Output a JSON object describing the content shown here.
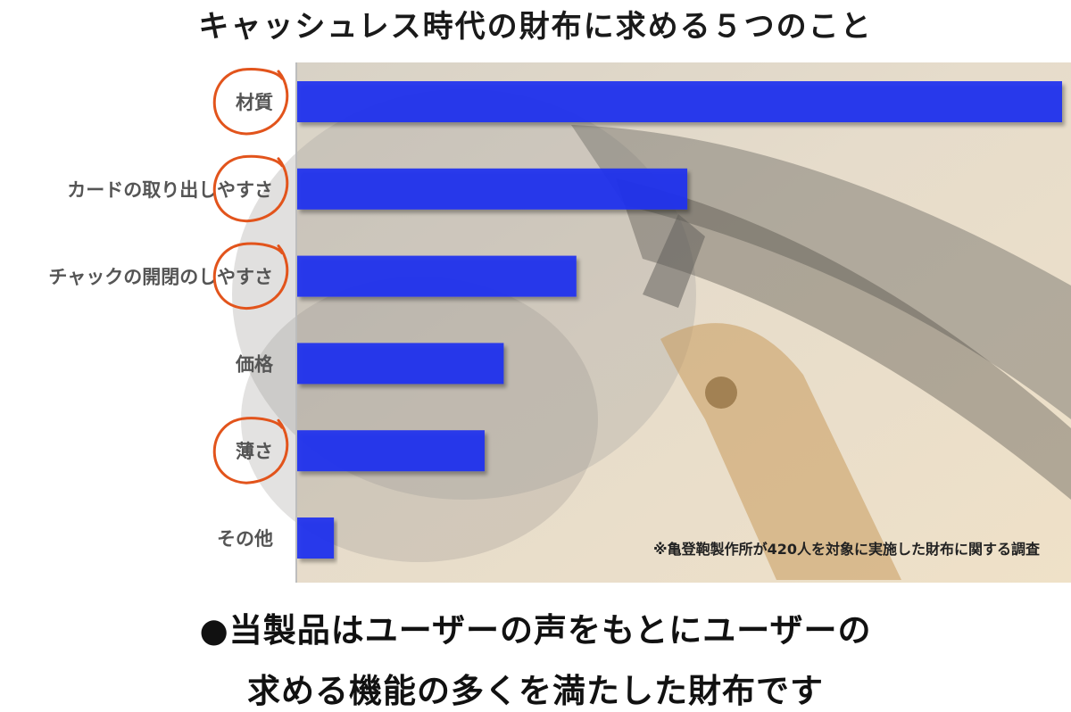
{
  "title": "キャッシュレス時代の財布に求める５つのこと",
  "chart_data": {
    "type": "bar",
    "orientation": "horizontal",
    "categories": [
      "材質",
      "カードの取り出しやすさ",
      "チャックの開閉のしやすさ",
      "価格",
      "薄さ",
      "その他"
    ],
    "values": [
      100,
      51,
      36.5,
      27,
      24.5,
      4.8
    ],
    "circled": [
      true,
      true,
      true,
      false,
      true,
      false
    ],
    "xlim": [
      0,
      100
    ],
    "bar_color": "#1f2ff0",
    "circle_color": "#e2541c",
    "note": "※亀登鞄製作所が420人を対象に実施した財布に関する調査"
  },
  "footer": {
    "line1": "●当製品はユーザーの声をもとにユーザーの",
    "line2": "求める機能の多くを満たした財布です"
  }
}
